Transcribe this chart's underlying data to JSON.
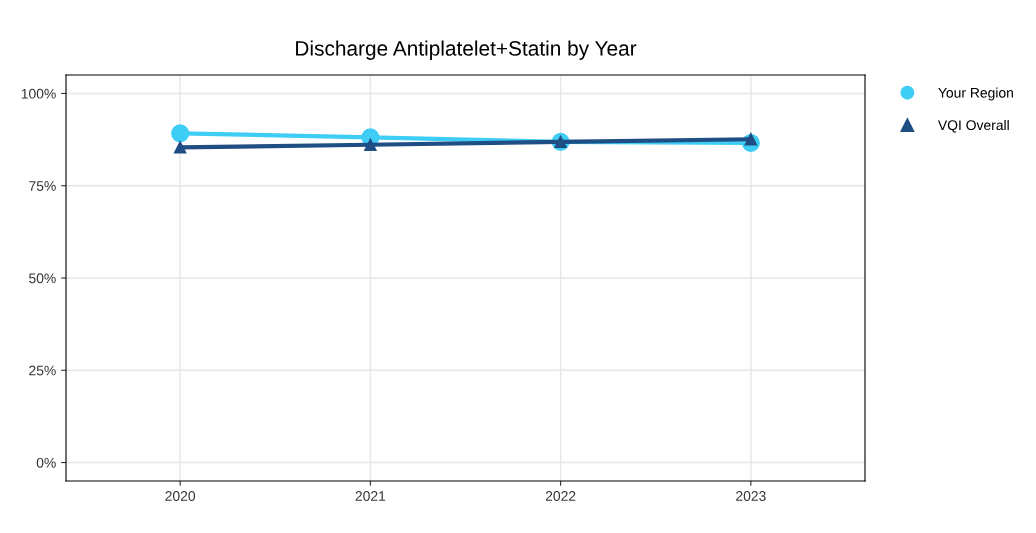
{
  "chart_data": {
    "type": "line",
    "title": "Discharge Antiplatelet+Statin by Year",
    "categories": [
      "2020",
      "2021",
      "2022",
      "2023"
    ],
    "series": [
      {
        "name": "Your Region",
        "color": "#3dcdf5",
        "values": [
          89.2,
          88.1,
          86.9,
          86.6
        ],
        "marker": "circle"
      },
      {
        "name": "VQI Overall",
        "color": "#1f4e85",
        "values": [
          85.4,
          86.1,
          86.9,
          87.6
        ],
        "marker": "triangle"
      }
    ],
    "ylim": [
      -5,
      105
    ],
    "yticks": [
      {
        "value": 0,
        "label": "0%"
      },
      {
        "value": 25,
        "label": "25%"
      },
      {
        "value": 50,
        "label": "50%"
      },
      {
        "value": 75,
        "label": "75%"
      },
      {
        "value": 100,
        "label": "100%"
      }
    ],
    "grid": true,
    "legend": "top right",
    "line_style": "solid"
  }
}
